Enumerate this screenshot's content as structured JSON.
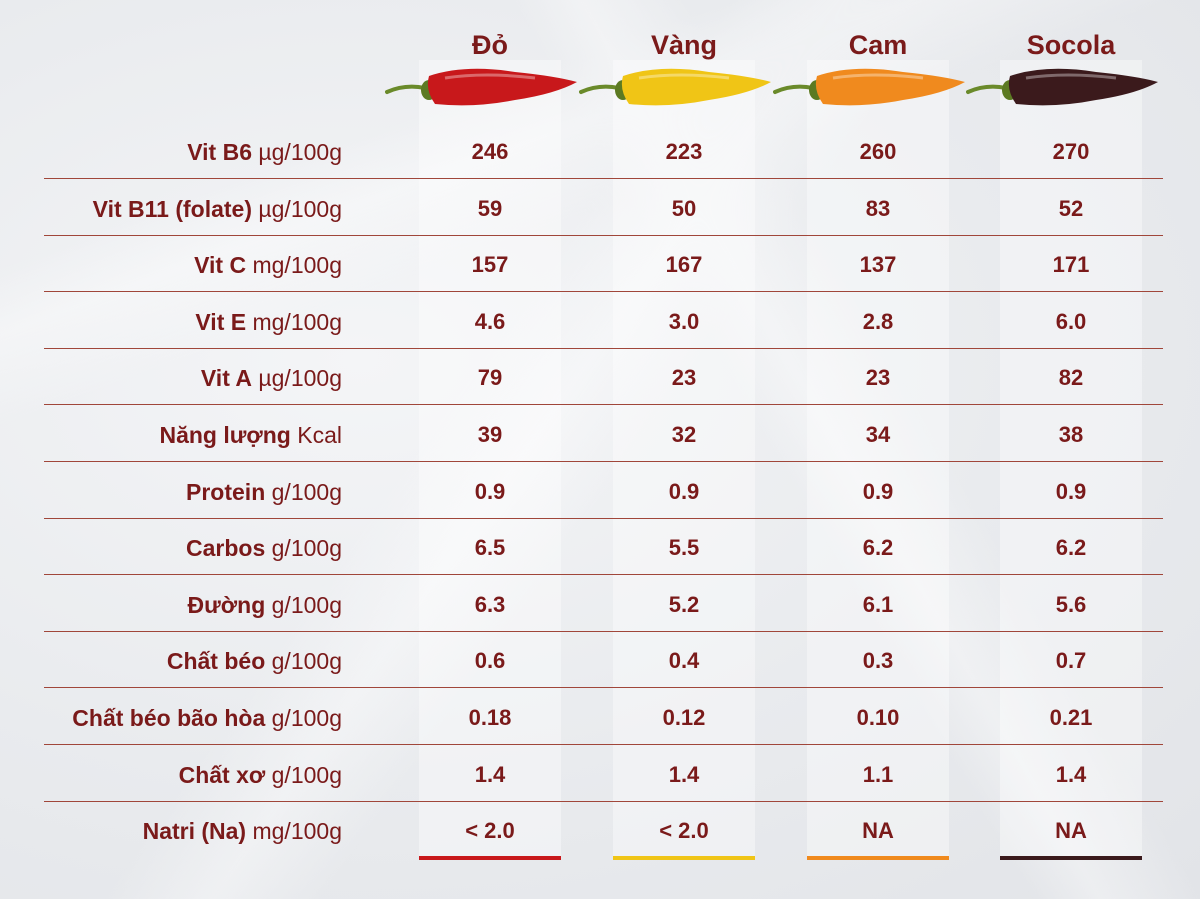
{
  "columns": [
    {
      "name": "Đỏ",
      "color": "#c8181b",
      "icon": "red-chili-pepper-icon"
    },
    {
      "name": "Vàng",
      "color": "#f0c516",
      "icon": "yellow-chili-pepper-icon"
    },
    {
      "name": "Cam",
      "color": "#f08a1e",
      "icon": "orange-chili-pepper-icon"
    },
    {
      "name": "Socola",
      "color": "#3b1a1c",
      "icon": "chocolate-chili-pepper-icon"
    }
  ],
  "rows": [
    {
      "name": "Vit B6",
      "unit": "µg/100g",
      "values": [
        "246",
        "223",
        "260",
        "270"
      ]
    },
    {
      "name": "Vit B11 (folate)",
      "unit": "µg/100g",
      "values": [
        "59",
        "50",
        "83",
        "52"
      ]
    },
    {
      "name": "Vit C",
      "unit": "mg/100g",
      "values": [
        "157",
        "167",
        "137",
        "171"
      ]
    },
    {
      "name": "Vit E",
      "unit": "mg/100g",
      "values": [
        "4.6",
        "3.0",
        "2.8",
        "6.0"
      ]
    },
    {
      "name": "Vit A",
      "unit": "µg/100g",
      "values": [
        "79",
        "23",
        "23",
        "82"
      ]
    },
    {
      "name": "Năng lượng",
      "unit": "Kcal",
      "values": [
        "39",
        "32",
        "34",
        "38"
      ]
    },
    {
      "name": "Protein",
      "unit": "g/100g",
      "values": [
        "0.9",
        "0.9",
        "0.9",
        "0.9"
      ]
    },
    {
      "name": "Carbos",
      "unit": "g/100g",
      "values": [
        "6.5",
        "5.5",
        "6.2",
        "6.2"
      ]
    },
    {
      "name": "Đường",
      "unit": "g/100g",
      "values": [
        "6.3",
        "5.2",
        "6.1",
        "5.6"
      ]
    },
    {
      "name": "Chất béo",
      "unit": "g/100g",
      "values": [
        "0.6",
        "0.4",
        "0.3",
        "0.7"
      ]
    },
    {
      "name": "Chất béo bão hòa",
      "unit": "g/100g",
      "values": [
        "0.18",
        "0.12",
        "0.10",
        "0.21"
      ]
    },
    {
      "name": "Chất xơ",
      "unit": "g/100g",
      "values": [
        "1.4",
        "1.4",
        "1.1",
        "1.4"
      ]
    },
    {
      "name": "Natri (Na)",
      "unit": "mg/100g",
      "values": [
        "< 2.0",
        "< 2.0",
        "NA",
        "NA"
      ]
    }
  ]
}
